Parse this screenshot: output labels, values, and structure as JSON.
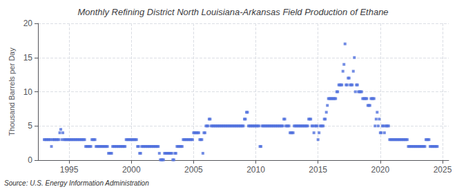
{
  "chart_data": {
    "type": "scatter",
    "title": "Monthly Refining District North Louisiana-Arkansas Field Production of Ethane",
    "ylabel": "Thousand Barrels per Day",
    "annotations": [
      "Source: U.S. Energy Information Administration"
    ],
    "marker": "square",
    "grid": true,
    "xlim": [
      1992.5,
      2025.5
    ],
    "xticks": [
      1995,
      2000,
      2005,
      2010,
      2015,
      2020,
      2025
    ],
    "ylim": [
      0,
      20
    ],
    "yticks": [
      0,
      5,
      10,
      15,
      20
    ],
    "x": [
      1993.0,
      1993.083,
      1993.167,
      1993.25,
      1993.333,
      1993.417,
      1993.5,
      1993.583,
      1993.667,
      1993.75,
      1993.833,
      1993.917,
      1994.0,
      1994.083,
      1994.167,
      1994.25,
      1994.333,
      1994.417,
      1994.5,
      1994.583,
      1994.667,
      1994.75,
      1994.833,
      1994.917,
      1995.0,
      1995.083,
      1995.167,
      1995.25,
      1995.333,
      1995.417,
      1995.5,
      1995.583,
      1995.667,
      1995.75,
      1995.833,
      1995.917,
      1996.0,
      1996.083,
      1996.167,
      1996.25,
      1996.333,
      1996.417,
      1996.5,
      1996.583,
      1996.667,
      1996.75,
      1996.833,
      1996.917,
      1997.0,
      1997.083,
      1997.167,
      1997.25,
      1997.333,
      1997.417,
      1997.5,
      1997.583,
      1997.667,
      1997.75,
      1997.833,
      1997.917,
      1998.0,
      1998.083,
      1998.167,
      1998.25,
      1998.333,
      1998.417,
      1998.5,
      1998.583,
      1998.667,
      1998.75,
      1998.833,
      1998.917,
      1999.0,
      1999.083,
      1999.167,
      1999.25,
      1999.333,
      1999.417,
      1999.5,
      1999.583,
      1999.667,
      1999.75,
      1999.833,
      1999.917,
      2000.0,
      2000.083,
      2000.167,
      2000.25,
      2000.333,
      2000.417,
      2000.5,
      2000.583,
      2000.667,
      2000.75,
      2000.833,
      2000.917,
      2001.0,
      2001.083,
      2001.167,
      2001.25,
      2001.333,
      2001.417,
      2001.5,
      2001.583,
      2001.667,
      2001.75,
      2001.833,
      2001.917,
      2002.0,
      2002.083,
      2002.167,
      2002.25,
      2002.333,
      2002.417,
      2002.5,
      2002.583,
      2002.667,
      2002.75,
      2002.833,
      2002.917,
      2003.0,
      2003.083,
      2003.167,
      2003.25,
      2003.333,
      2003.417,
      2003.5,
      2003.583,
      2003.667,
      2003.75,
      2003.833,
      2003.917,
      2004.0,
      2004.083,
      2004.167,
      2004.25,
      2004.333,
      2004.417,
      2004.5,
      2004.583,
      2004.667,
      2004.75,
      2004.833,
      2004.917,
      2005.0,
      2005.083,
      2005.167,
      2005.25,
      2005.333,
      2005.417,
      2005.5,
      2005.583,
      2005.667,
      2005.75,
      2005.833,
      2005.917,
      2006.0,
      2006.083,
      2006.167,
      2006.25,
      2006.333,
      2006.417,
      2006.5,
      2006.583,
      2006.667,
      2006.75,
      2006.833,
      2006.917,
      2007.0,
      2007.083,
      2007.167,
      2007.25,
      2007.333,
      2007.417,
      2007.5,
      2007.583,
      2007.667,
      2007.75,
      2007.833,
      2007.917,
      2008.0,
      2008.083,
      2008.167,
      2008.25,
      2008.333,
      2008.417,
      2008.5,
      2008.583,
      2008.667,
      2008.75,
      2008.833,
      2008.917,
      2009.0,
      2009.083,
      2009.167,
      2009.25,
      2009.333,
      2009.417,
      2009.5,
      2009.583,
      2009.667,
      2009.75,
      2009.833,
      2009.917,
      2010.0,
      2010.083,
      2010.167,
      2010.25,
      2010.333,
      2010.417,
      2010.5,
      2010.583,
      2010.667,
      2010.75,
      2010.833,
      2010.917,
      2011.0,
      2011.083,
      2011.167,
      2011.25,
      2011.333,
      2011.417,
      2011.5,
      2011.583,
      2011.667,
      2011.75,
      2011.833,
      2011.917,
      2012.0,
      2012.083,
      2012.167,
      2012.25,
      2012.333,
      2012.417,
      2012.5,
      2012.583,
      2012.667,
      2012.75,
      2012.833,
      2012.917,
      2013.0,
      2013.083,
      2013.167,
      2013.25,
      2013.333,
      2013.417,
      2013.5,
      2013.583,
      2013.667,
      2013.75,
      2013.833,
      2013.917,
      2014.0,
      2014.083,
      2014.167,
      2014.25,
      2014.333,
      2014.417,
      2014.5,
      2014.583,
      2014.667,
      2014.75,
      2014.833,
      2014.917,
      2015.0,
      2015.083,
      2015.167,
      2015.25,
      2015.333,
      2015.417,
      2015.5,
      2015.583,
      2015.667,
      2015.75,
      2015.833,
      2015.917,
      2016.0,
      2016.083,
      2016.167,
      2016.25,
      2016.333,
      2016.417,
      2016.5,
      2016.583,
      2016.667,
      2016.75,
      2016.833,
      2016.917,
      2017.0,
      2017.083,
      2017.167,
      2017.25,
      2017.333,
      2017.417,
      2017.5,
      2017.583,
      2017.667,
      2017.75,
      2017.833,
      2017.917,
      2018.0,
      2018.083,
      2018.167,
      2018.25,
      2018.333,
      2018.417,
      2018.5,
      2018.583,
      2018.667,
      2018.75,
      2018.833,
      2018.917,
      2019.0,
      2019.083,
      2019.167,
      2019.25,
      2019.333,
      2019.417,
      2019.5,
      2019.583,
      2019.667,
      2019.75,
      2019.833,
      2019.917,
      2020.0,
      2020.083,
      2020.167,
      2020.25,
      2020.333,
      2020.417,
      2020.5,
      2020.583,
      2020.667,
      2020.75,
      2020.833,
      2020.917,
      2021.0,
      2021.083,
      2021.167,
      2021.25,
      2021.333,
      2021.417,
      2021.5,
      2021.583,
      2021.667,
      2021.75,
      2021.833,
      2021.917,
      2022.0,
      2022.083,
      2022.167,
      2022.25,
      2022.333,
      2022.417,
      2022.5,
      2022.583,
      2022.667,
      2022.75,
      2022.833,
      2022.917,
      2023.0,
      2023.083,
      2023.167,
      2023.25,
      2023.333,
      2023.417,
      2023.5,
      2023.583,
      2023.667,
      2023.75,
      2023.833,
      2023.917,
      2024.0,
      2024.083,
      2024.167,
      2024.25,
      2024.333,
      2024.417,
      2024.5,
      2024.583
    ],
    "values": [
      3.0,
      3.0,
      3.0,
      3.0,
      3.0,
      3.0,
      3.0,
      2.0,
      3.0,
      3.0,
      3.0,
      3.0,
      3.0,
      3.0,
      3.0,
      4.0,
      4.5,
      3.0,
      4.0,
      3.0,
      3.0,
      3.0,
      3.0,
      3.0,
      3.0,
      3.0,
      3.0,
      3.0,
      3.0,
      3.0,
      3.0,
      3.0,
      3.0,
      3.0,
      3.0,
      3.0,
      3.0,
      3.0,
      3.0,
      3.0,
      2.0,
      2.0,
      2.0,
      2.0,
      2.0,
      2.0,
      3.0,
      3.0,
      3.0,
      3.0,
      2.0,
      2.0,
      2.0,
      2.0,
      2.0,
      2.0,
      2.0,
      2.0,
      2.0,
      2.0,
      2.0,
      2.0,
      1.0,
      1.0,
      1.0,
      1.0,
      2.0,
      2.0,
      2.0,
      2.0,
      2.0,
      2.0,
      2.0,
      2.0,
      2.0,
      2.0,
      2.0,
      2.0,
      2.0,
      3.0,
      3.0,
      3.0,
      3.0,
      3.0,
      3.0,
      3.0,
      3.0,
      3.0,
      3.0,
      3.0,
      2.0,
      2.0,
      1.0,
      1.0,
      2.0,
      2.0,
      2.0,
      2.0,
      2.0,
      2.0,
      2.0,
      2.0,
      2.0,
      2.0,
      2.0,
      2.0,
      2.0,
      2.0,
      2.0,
      2.0,
      2.0,
      1.0,
      0.05,
      0.05,
      0.05,
      0.05,
      1.0,
      1.0,
      1.0,
      1.0,
      1.0,
      1.0,
      1.0,
      1.0,
      0.05,
      0.05,
      1.0,
      1.0,
      2.0,
      2.0,
      2.0,
      2.0,
      2.0,
      2.0,
      3.0,
      3.0,
      3.0,
      3.0,
      3.0,
      3.0,
      3.0,
      3.0,
      3.0,
      3.0,
      4.0,
      4.0,
      4.0,
      4.0,
      4.0,
      4.0,
      3.0,
      3.0,
      3.0,
      1.0,
      4.0,
      4.0,
      5.0,
      5.0,
      5.0,
      6.0,
      6.0,
      5.0,
      5.0,
      5.0,
      5.0,
      5.0,
      5.0,
      5.0,
      5.0,
      5.0,
      5.0,
      5.0,
      5.0,
      5.0,
      5.0,
      5.0,
      5.0,
      5.0,
      5.0,
      5.0,
      5.0,
      5.0,
      5.0,
      5.0,
      5.0,
      5.0,
      5.0,
      5.0,
      5.0,
      5.0,
      5.0,
      5.0,
      5.0,
      6.0,
      6.0,
      7.0,
      7.0,
      5.0,
      5.0,
      5.0,
      5.0,
      5.0,
      5.0,
      5.0,
      5.0,
      5.0,
      5.0,
      5.0,
      2.0,
      2.0,
      5.0,
      5.0,
      5.0,
      5.0,
      5.0,
      5.0,
      5.0,
      5.0,
      5.0,
      5.0,
      5.0,
      5.0,
      5.0,
      5.0,
      5.0,
      5.0,
      5.0,
      5.0,
      5.0,
      5.0,
      5.0,
      6.0,
      6.0,
      5.0,
      5.0,
      5.0,
      5.0,
      4.0,
      4.0,
      4.0,
      4.0,
      5.0,
      5.0,
      5.0,
      5.0,
      5.0,
      5.0,
      5.0,
      5.0,
      5.0,
      5.0,
      5.0,
      5.0,
      5.0,
      5.0,
      6.0,
      6.0,
      6.0,
      5.0,
      5.0,
      4.0,
      5.0,
      5.0,
      5.0,
      3.0,
      4.0,
      5.0,
      5.0,
      5.0,
      5.0,
      6.0,
      6.0,
      7.0,
      8.0,
      9.0,
      9.0,
      9.0,
      9.0,
      9.0,
      9.0,
      9.0,
      9.0,
      10.0,
      10.0,
      11.0,
      11.0,
      11.0,
      11.0,
      13.0,
      14.0,
      17.0,
      11.0,
      11.0,
      12.0,
      12.0,
      11.0,
      11.0,
      11.0,
      13.0,
      15.0,
      10.0,
      11.0,
      11.0,
      10.0,
      10.0,
      10.0,
      10.0,
      9.0,
      9.0,
      9.0,
      9.0,
      9.0,
      8.0,
      8.0,
      8.0,
      9.0,
      9.0,
      9.0,
      9.0,
      5.0,
      6.0,
      7.0,
      5.0,
      6.0,
      4.0,
      4.0,
      5.0,
      5.0,
      4.0,
      5.0,
      5.0,
      5.0,
      5.0,
      3.0,
      3.0,
      3.0,
      3.0,
      3.0,
      3.0,
      3.0,
      3.0,
      3.0,
      3.0,
      3.0,
      3.0,
      3.0,
      3.0,
      3.0,
      3.0,
      3.0,
      3.0,
      2.0,
      2.0,
      2.0,
      2.0,
      2.0,
      2.0,
      2.0,
      2.0,
      2.0,
      2.0,
      2.0,
      2.0,
      2.0,
      2.0,
      2.0,
      2.0,
      2.0,
      3.0,
      3.0,
      3.0,
      3.0,
      2.0,
      2.0,
      2.0,
      2.0,
      2.0,
      2.0,
      2.0,
      2.0
    ]
  }
}
